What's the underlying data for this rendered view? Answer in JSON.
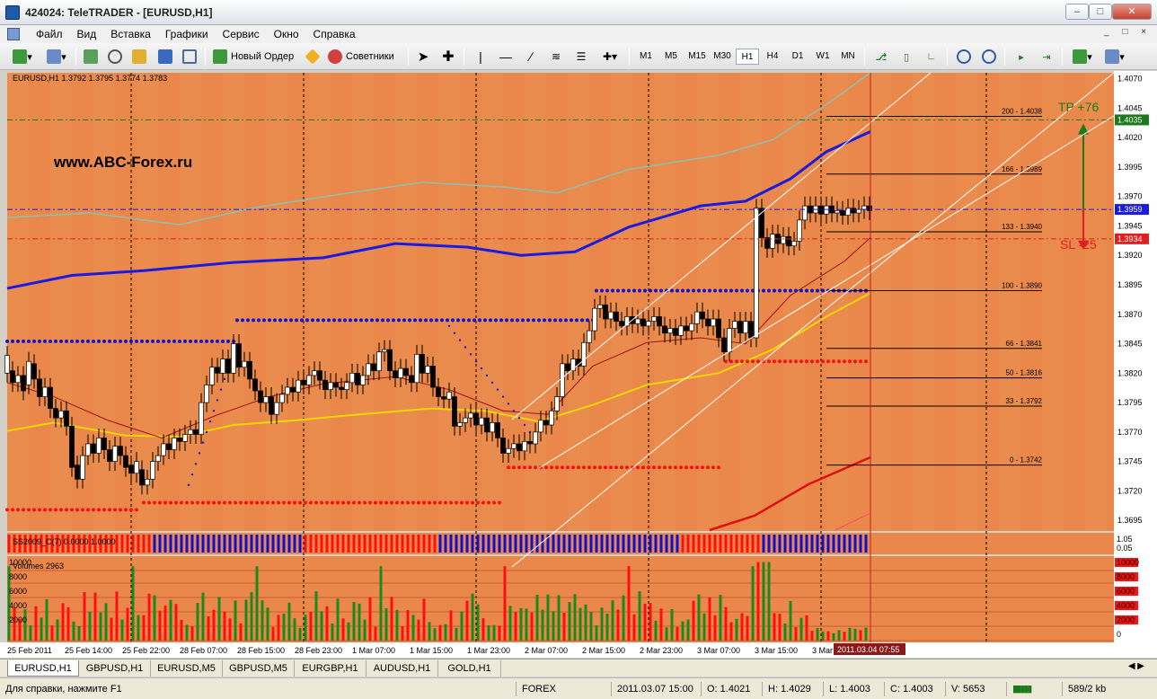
{
  "window": {
    "title": "424024: TeleTRADER - [EURUSD,H1]"
  },
  "menu": [
    "Файл",
    "Вид",
    "Вставка",
    "Графики",
    "Сервис",
    "Окно",
    "Справка"
  ],
  "toolbar": {
    "new_order_label": "Новый Ордер",
    "advisors_label": "Советники",
    "timeframes": [
      "M1",
      "M5",
      "M15",
      "M30",
      "H1",
      "H4",
      "D1",
      "W1",
      "MN"
    ],
    "active_timeframe": "H1"
  },
  "chart": {
    "info": "EURUSD,H1  1.3792 1.3795 1.3774 1.3783",
    "watermark": "www.ABC-Forex.ru",
    "tp_label": "TP +76",
    "sl_label": "SL -25",
    "price_labels": [
      "1.4070",
      "1.4045",
      "1.4020",
      "1.3995",
      "1.3970",
      "1.3945",
      "1.3920",
      "1.3895",
      "1.3870",
      "1.3845",
      "1.3820",
      "1.3795",
      "1.3770",
      "1.3745",
      "1.3720",
      "1.3695"
    ],
    "tp_price": "1.4035",
    "current_price": "1.3959",
    "sl_price": "1.3934",
    "fib_levels": [
      "200 - 1.4038",
      "166 - 1.3989",
      "133 - 1.3940",
      "100 - 1.3890",
      "66 - 1.3841",
      "50 - 1.3816",
      "33 - 1.3792",
      "0 - 1.3742"
    ],
    "time_labels": [
      "25 Feb 2011",
      "25 Feb 14:00",
      "25 Feb 22:00",
      "28 Feb 07:00",
      "28 Feb 15:00",
      "28 Feb 23:00",
      "1 Mar 07:00",
      "1 Mar 15:00",
      "1 Mar 23:00",
      "2 Mar 07:00",
      "2 Mar 15:00",
      "2 Mar 23:00",
      "3 Mar 07:00",
      "3 Mar 15:00",
      "3 Mar"
    ],
    "crosshair_time": "2011.03.04 07:55",
    "indicator_label": "SS2009_C(7) 0.0000 1.0000",
    "indicator_scale": [
      "1.05",
      "0.05"
    ],
    "volumes_label": "Volumes 2963",
    "volume_scale_left": [
      "10000",
      "8000",
      "6000",
      "4000",
      "2000"
    ],
    "volume_scale_right": [
      "10000",
      "8000",
      "6000",
      "4000",
      "2000",
      "0"
    ]
  },
  "colors": {
    "chart_bg": "#e9884a",
    "chart_bg_alt": "#eb8f50",
    "bull": "#ffffff",
    "bear": "#000000",
    "blue_band": "#1a1ae0",
    "yellow_ma": "#f5d700",
    "red_ma": "#a01010",
    "psar_blue": "#1010d0",
    "psar_red": "#ff1010",
    "tp_color": "#1a7a1a",
    "sl_color": "#e02020"
  },
  "tabs": [
    "EURUSD,H1",
    "GBPUSD,H1",
    "EURUSD,M5",
    "GBPUSD,M5",
    "EURGBP,H1",
    "AUDUSD,H1",
    "GOLD,H1"
  ],
  "active_tab": "EURUSD,H1",
  "status": {
    "help": "Для справки, нажмите F1",
    "profile": "FOREX",
    "time": "2011.03.07 15:00",
    "open": "O: 1.4021",
    "high": "H: 1.4029",
    "low": "L: 1.4003",
    "close": "C: 1.4003",
    "volume": "V: 5653",
    "traffic": "589/2 kb"
  }
}
